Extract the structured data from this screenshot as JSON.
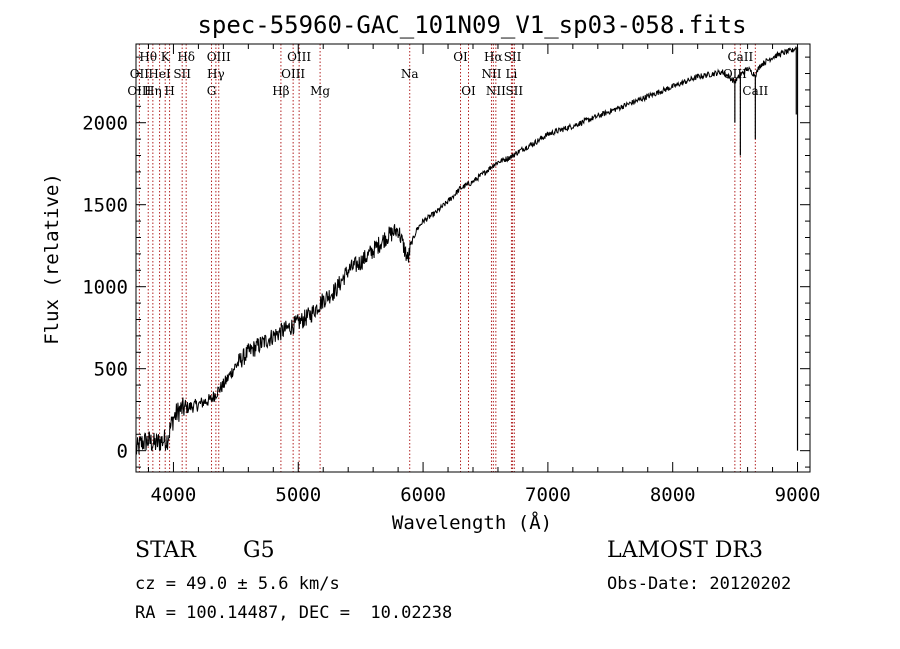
{
  "chart_data": {
    "type": "line",
    "title": "spec-55960-GAC_101N09_V1_sp03-058.fits",
    "xlabel": "Wavelength (Å)",
    "ylabel": "Flux (relative)",
    "xlim": [
      3700,
      9100
    ],
    "ylim": [
      -130,
      2480
    ],
    "xticks": [
      4000,
      5000,
      6000,
      7000,
      8000,
      9000
    ],
    "yticks": [
      0,
      500,
      1000,
      1500,
      2000
    ],
    "series": [
      {
        "name": "flux",
        "x": [
          3700,
          3750,
          3800,
          3850,
          3900,
          3950,
          4000,
          4050,
          4100,
          4150,
          4200,
          4250,
          4300,
          4350,
          4400,
          4500,
          4600,
          4700,
          4800,
          4900,
          5000,
          5100,
          5200,
          5300,
          5400,
          5500,
          5600,
          5700,
          5800,
          5880,
          5900,
          5950,
          6000,
          6100,
          6200,
          6300,
          6400,
          6500,
          6560,
          6600,
          6700,
          6800,
          6900,
          7000,
          7200,
          7400,
          7600,
          7800,
          8000,
          8200,
          8400,
          8498,
          8542,
          8600,
          8662,
          8700,
          8800,
          8900,
          8960,
          8990,
          9000
        ],
        "y": [
          0,
          50,
          60,
          40,
          60,
          70,
          200,
          250,
          260,
          270,
          280,
          300,
          310,
          360,
          400,
          520,
          600,
          650,
          700,
          740,
          780,
          830,
          920,
          980,
          1100,
          1150,
          1220,
          1300,
          1350,
          1160,
          1250,
          1350,
          1400,
          1450,
          1520,
          1600,
          1640,
          1700,
          1740,
          1760,
          1790,
          1840,
          1880,
          1930,
          1980,
          2040,
          2100,
          2160,
          2220,
          2280,
          2310,
          2250,
          2290,
          2330,
          2290,
          2350,
          2400,
          2430,
          2440,
          2460,
          2460
        ],
        "absorption": [
          [
            8498,
            2000
          ],
          [
            8542,
            1800
          ],
          [
            8662,
            1900
          ],
          [
            8990,
            2050
          ],
          [
            9000,
            0
          ]
        ]
      }
    ],
    "spectral_lines": [
      {
        "label": "Hθ",
        "x": 3798,
        "row": 1
      },
      {
        "label": "OII",
        "x": 3727,
        "row": 2
      },
      {
        "label": "OIII",
        "x": 3727,
        "row": 3
      },
      {
        "label": "HeI",
        "x": 3889,
        "row": 2
      },
      {
        "label": "Hη",
        "x": 3835,
        "row": 3
      },
      {
        "label": "K",
        "x": 3934,
        "row": 1
      },
      {
        "label": "SII",
        "x": 4070,
        "row": 2
      },
      {
        "label": "H",
        "x": 3969,
        "row": 3
      },
      {
        "label": "Hδ",
        "x": 4102,
        "row": 1
      },
      {
        "label": "OIII",
        "x": 4363,
        "row": 1
      },
      {
        "label": "Hγ",
        "x": 4340,
        "row": 2
      },
      {
        "label": "G",
        "x": 4305,
        "row": 3
      },
      {
        "label": "Hβ",
        "x": 4861,
        "row": 3
      },
      {
        "label": "OIII",
        "x": 5007,
        "row": 1
      },
      {
        "label": "OIII",
        "x": 4959,
        "row": 2
      },
      {
        "label": "Mg",
        "x": 5175,
        "row": 3
      },
      {
        "label": "Na",
        "x": 5893,
        "row": 2
      },
      {
        "label": "OI",
        "x": 6300,
        "row": 1
      },
      {
        "label": "OI",
        "x": 6364,
        "row": 3
      },
      {
        "label": "Hα",
        "x": 6563,
        "row": 1
      },
      {
        "label": "SII",
        "x": 6717,
        "row": 1
      },
      {
        "label": "NII",
        "x": 6548,
        "row": 2
      },
      {
        "label": "Li",
        "x": 6708,
        "row": 2
      },
      {
        "label": "NII",
        "x": 6583,
        "row": 3
      },
      {
        "label": "SII",
        "x": 6731,
        "row": 3
      },
      {
        "label": "CaII",
        "x": 8542,
        "row": 1
      },
      {
        "label": "OIII",
        "x": 8498,
        "row": 2
      },
      {
        "label": "CaII",
        "x": 8662,
        "row": 3
      }
    ],
    "line_color": "#b22222",
    "curve_color": "#000000"
  },
  "info": {
    "object_class": "STAR",
    "subclass": "G5",
    "release": "LAMOST DR3",
    "redshift": "cz = 49.0 ± 5.6 km/s",
    "obs_date": "Obs-Date: 20120202",
    "coords": "RA = 100.14487, DEC =  10.02238"
  }
}
